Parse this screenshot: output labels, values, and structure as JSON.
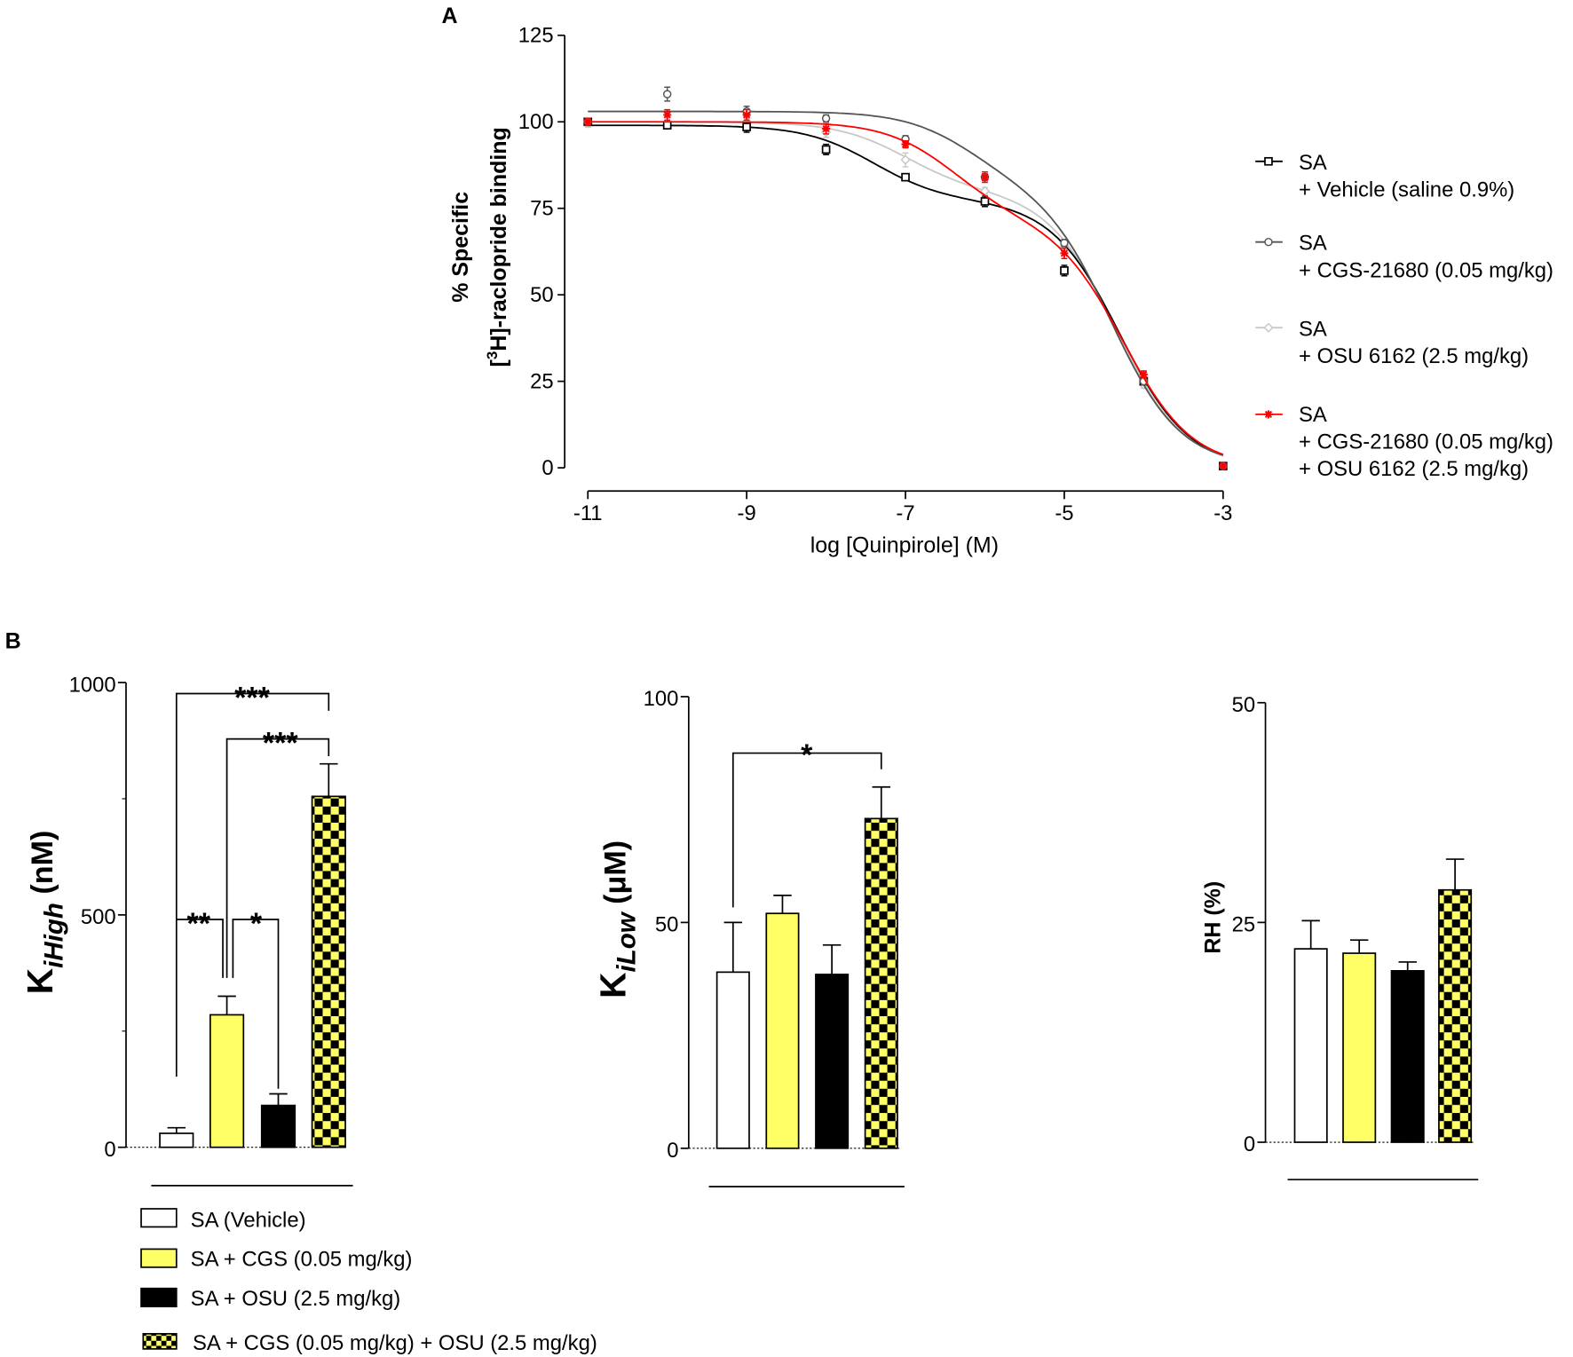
{
  "chart_data": [
    {
      "panel": "A",
      "type": "line",
      "xlabel": "log [Quinpirole] (M)",
      "ylabel": {
        "line1": "% Specific",
        "line2_pre": "[",
        "line2_sup": "3",
        "line2_post": "H]-raclopride binding"
      },
      "xlim": [
        -11,
        -3
      ],
      "ylim": [
        0,
        125
      ],
      "xticks": [
        "-11",
        "-9",
        "-7",
        "-5",
        "-3"
      ],
      "yticks": [
        "0",
        "25",
        "50",
        "75",
        "100",
        "125"
      ],
      "x": [
        -11,
        -10,
        -9,
        -8,
        -7,
        -6,
        -5,
        -4,
        -3
      ],
      "legend_position": "right",
      "series": [
        {
          "name_line1": "SA",
          "name_line2": "+ Vehicle (saline 0.9%)",
          "color": "#000000",
          "marker": "square",
          "values": [
            100,
            99,
            98.5,
            92,
            84,
            77,
            57,
            25,
            0.5
          ],
          "errors": [
            1,
            1,
            1.5,
            1.5,
            1,
            1.5,
            1.5,
            1,
            0.5
          ],
          "fit": {
            "top": 99,
            "bottom": 0,
            "frac_high": 0.22,
            "logKi_high": -7.4,
            "logKi_low": -4.3
          }
        },
        {
          "name_line1": "SA",
          "name_line2": "+ CGS-21680 (0.05 mg/kg)",
          "color": "#555555",
          "marker": "circle",
          "values": [
            100,
            108,
            103,
            101,
            95,
            84,
            65,
            25,
            0.5
          ],
          "errors": [
            1,
            2,
            1.5,
            1,
            1,
            1,
            1,
            1,
            0.5
          ],
          "fit": {
            "top": 103,
            "bottom": 0.5,
            "frac_high": 0.2,
            "logKi_high": -6.2,
            "logKi_low": -4.4
          }
        },
        {
          "name_line1": "SA",
          "name_line2": "+ OSU 6162 (2.5 mg/kg)",
          "color": "#c8c8c8",
          "marker": "diamond",
          "values": [
            99.5,
            99,
            100,
            97,
            89,
            80,
            64,
            24,
            0.5
          ],
          "errors": [
            1,
            1,
            1,
            1.5,
            2,
            1,
            1,
            1,
            0.5
          ],
          "fit": {
            "top": 100,
            "bottom": 0,
            "frac_high": 0.2,
            "logKi_high": -7.0,
            "logKi_low": -4.35
          }
        },
        {
          "name_line1": "SA",
          "name_line2": "+ CGS-21680 (0.05 mg/kg)",
          "name_line3": "+ OSU 6162 (2.5 mg/kg)",
          "color": "#ff0000",
          "marker": "star",
          "values": [
            100,
            102,
            102,
            98,
            93.5,
            84,
            62,
            27,
            0.5
          ],
          "errors": [
            1,
            1.5,
            1.5,
            1.5,
            1,
            1.5,
            1.5,
            1,
            0.5
          ],
          "fit": {
            "top": 100,
            "bottom": 0,
            "frac_high": 0.28,
            "logKi_high": -6.4,
            "logKi_low": -4.25
          }
        }
      ]
    },
    {
      "panel": "B1",
      "type": "bar",
      "ylabel": {
        "main": "K",
        "sub": "iHigh",
        "unit": " (nM)"
      },
      "ylim": [
        0,
        1000
      ],
      "yticks": [
        "0",
        "500",
        "1000"
      ],
      "minor_yticks": [
        250,
        750
      ],
      "values": [
        30,
        285,
        90,
        755
      ],
      "errors": [
        12,
        40,
        25,
        70
      ],
      "significance": [
        {
          "from": 0,
          "to": 3,
          "label": "***"
        },
        {
          "from": 1,
          "to": 3,
          "label": "***"
        },
        {
          "from": 0,
          "to": 1,
          "label": "**"
        },
        {
          "from": 1,
          "to": 2,
          "label": "*"
        }
      ]
    },
    {
      "panel": "B2",
      "type": "bar",
      "ylabel": {
        "main": "K",
        "sub": "iLow",
        "unit": " (μM)"
      },
      "ylim": [
        0,
        100
      ],
      "yticks": [
        "0",
        "50",
        "100"
      ],
      "values": [
        39,
        52,
        38.5,
        73
      ],
      "errors": [
        11,
        4,
        6.5,
        7
      ],
      "significance": [
        {
          "from": 0,
          "to": 3,
          "label": "*"
        }
      ]
    },
    {
      "panel": "B3",
      "type": "bar",
      "ylabel": {
        "main": "RH (%)"
      },
      "ylim": [
        0,
        50
      ],
      "yticks": [
        "0",
        "25",
        "50"
      ],
      "values": [
        22,
        21.5,
        19.5,
        28.7
      ],
      "errors": [
        3.2,
        1.5,
        1,
        3.5
      ],
      "significance": []
    }
  ],
  "panel_labels": {
    "a": "A",
    "b": "B"
  },
  "bar_groups": [
    {
      "name": "SA (Vehicle)",
      "fill": "#ffffff",
      "pattern": "none"
    },
    {
      "name": "SA + CGS (0.05 mg/kg)",
      "fill": "#ffff66",
      "pattern": "none"
    },
    {
      "name": "SA + OSU (2.5 mg/kg)",
      "fill": "#000000",
      "pattern": "none"
    },
    {
      "name": "SA + CGS (0.05 mg/kg) + OSU (2.5 mg/kg)",
      "fill": "#ffff66",
      "pattern": "checker"
    }
  ]
}
